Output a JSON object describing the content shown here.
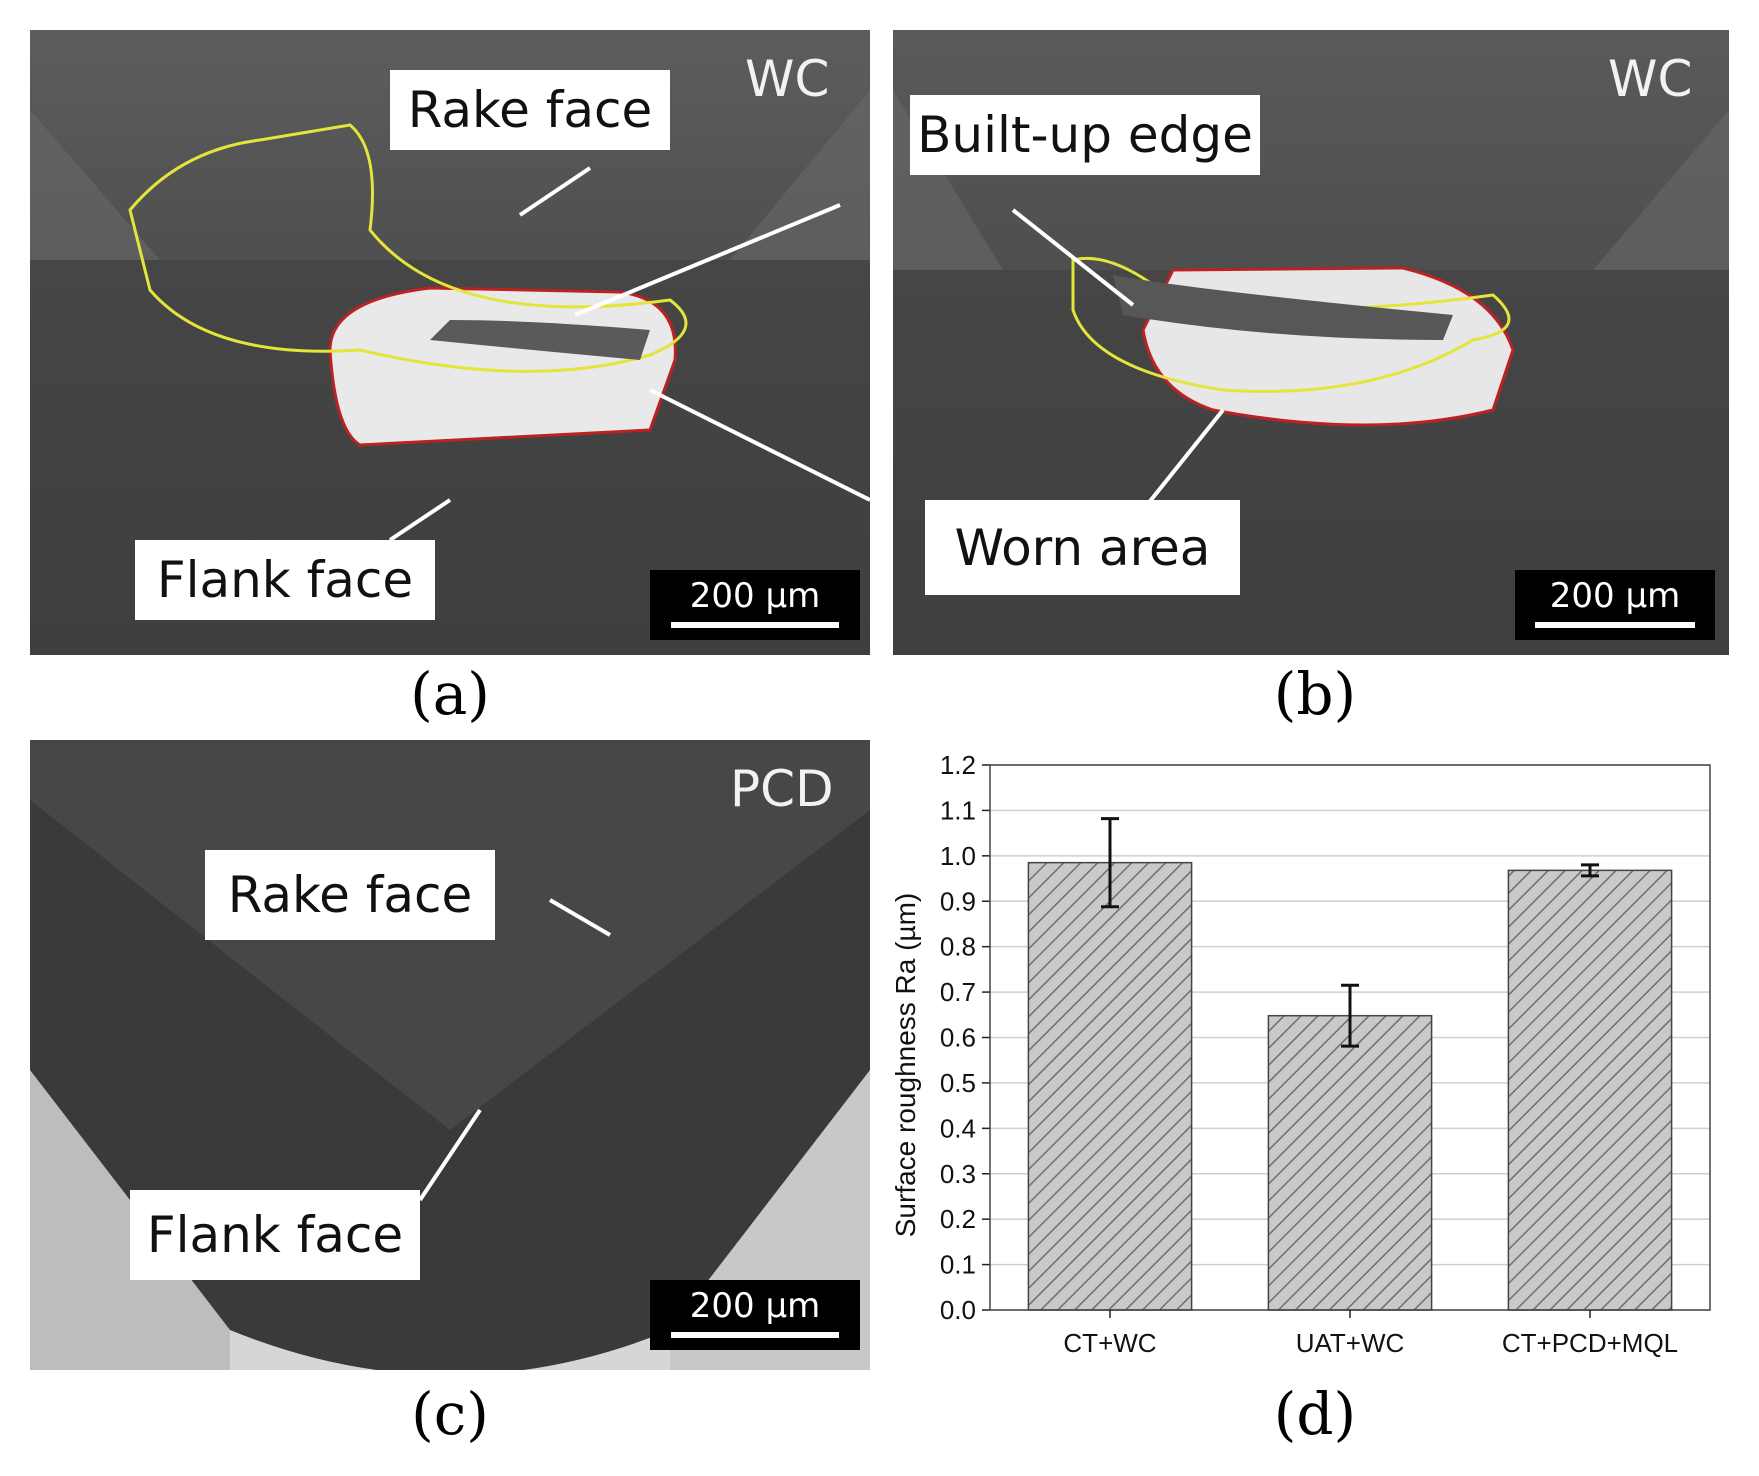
{
  "panels": {
    "a": {
      "label": "(a)",
      "material": "WC",
      "callouts": {
        "rake": "Rake face",
        "flank": "Flank face"
      },
      "scalebar": "200 µm"
    },
    "b": {
      "label": "(b)",
      "material": "WC",
      "scalebar": "200 µm"
    },
    "c": {
      "label": "(c)",
      "material": "PCD",
      "callouts": {
        "rake": "Rake face",
        "flank": "Flank face"
      },
      "scalebar": "200 µm"
    },
    "d": {
      "label": "(d)"
    }
  },
  "shared_callouts": {
    "bue": "Built-up edge",
    "worn": "Worn area"
  },
  "chart_data": {
    "type": "bar",
    "categories": [
      "CT+WC",
      "UAT+WC",
      "CT+PCD+MQL"
    ],
    "values": [
      0.985,
      0.648,
      0.968
    ],
    "errors": [
      0.097,
      0.067,
      0.012
    ],
    "ylabel": "Surface roughness Ra (µm)",
    "xlabel": "",
    "ylim": [
      0,
      1.2
    ],
    "yticks": [
      "0.0",
      "0.1",
      "0.2",
      "0.3",
      "0.4",
      "0.5",
      "0.6",
      "0.7",
      "0.8",
      "0.9",
      "1.0",
      "1.1",
      "1.2"
    ],
    "grid": true,
    "bar_fill": "hatched grey",
    "colors": {
      "bar": "#c9c9c9",
      "hatch": "#6e6e6e",
      "grid": "#cfcfcf"
    }
  }
}
